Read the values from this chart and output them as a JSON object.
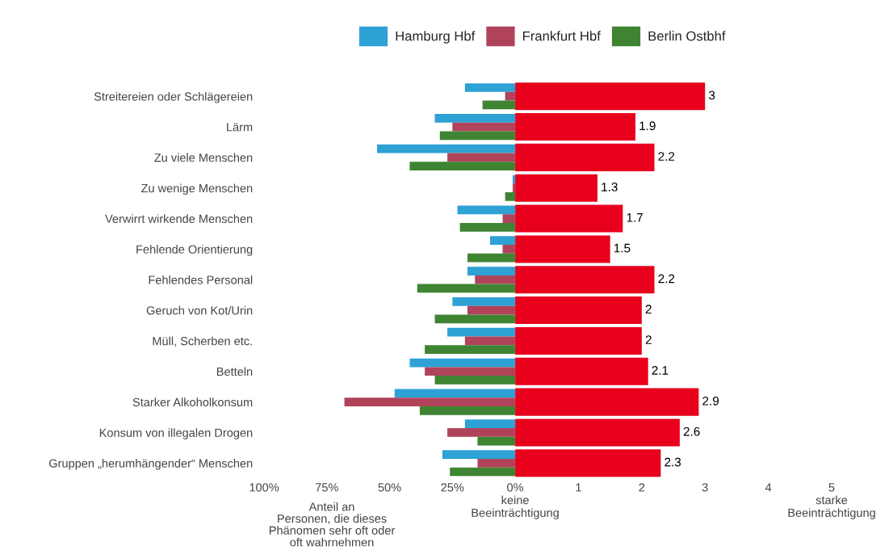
{
  "chart_data": [
    {
      "type": "bar",
      "orientation": "horizontal",
      "legend": "top",
      "xlabel": "Anteil an\nPersonen, die dieses\nPhänomen sehr oft oder\noft wahrnehmen",
      "categories": [
        "Streitereien oder Schlägereien",
        "Lärm",
        "Zu viele Menschen",
        "Zu wenige Menschen",
        "Verwirrt wirkende Menschen",
        "Fehlende Orientierung",
        "Fehlendes Personal",
        "Geruch von Kot/Urin",
        "Müll, Scherben etc.",
        "Betteln",
        "Starker Alkoholkonsum",
        "Konsum von illegalen Drogen",
        "Gruppen „herumhängender“ Menschen"
      ],
      "series": [
        {
          "name": "Hamburg Hbf",
          "color": "#2ea1d5",
          "values": [
            20,
            32,
            55,
            1,
            23,
            10,
            19,
            25,
            27,
            42,
            48,
            20,
            29
          ]
        },
        {
          "name": "Frankfurt Hbf",
          "color": "#b0435a",
          "values": [
            4,
            25,
            27,
            1,
            5,
            5,
            16,
            19,
            20,
            36,
            68,
            27,
            15
          ]
        },
        {
          "name": "Berlin Ostbhf",
          "color": "#3f8433",
          "values": [
            13,
            30,
            42,
            4,
            22,
            19,
            39,
            32,
            36,
            32,
            38,
            15,
            26
          ]
        }
      ],
      "xlim": [
        100,
        0
      ],
      "xticks": [
        {
          "value": 100,
          "label": "100%"
        },
        {
          "value": 75,
          "label": "75%"
        },
        {
          "value": 50,
          "label": "50%"
        },
        {
          "value": 25,
          "label": "25%"
        },
        {
          "value": 0,
          "label": "0%\nkeine\nBeeinträchtigung"
        }
      ]
    },
    {
      "type": "bar",
      "orientation": "horizontal",
      "tick_labels": "x",
      "data_labels": true,
      "color": "#e8001c",
      "values": [
        3,
        1.9,
        2.2,
        1.3,
        1.7,
        1.5,
        2.2,
        2,
        2,
        2.1,
        2.9,
        2.6,
        2.3
      ],
      "xlim": [
        0,
        5
      ],
      "xticks": [
        1,
        2,
        3,
        4,
        {
          "value": 5,
          "label": "5\nstarke\nBeeinträchtigung"
        }
      ]
    }
  ]
}
